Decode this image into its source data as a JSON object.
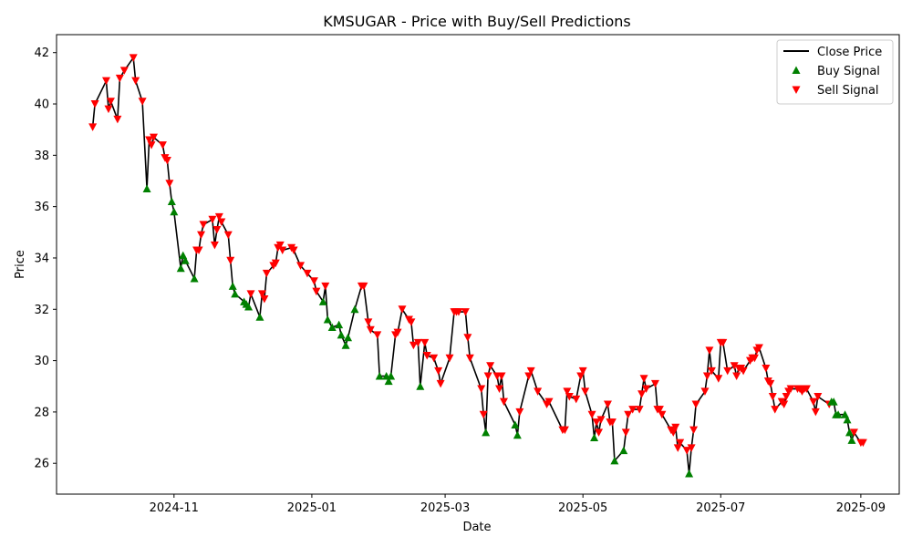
{
  "chart_data": {
    "type": "line",
    "title": "KMSUGAR - Price with Buy/Sell Predictions",
    "xlabel": "Date",
    "ylabel": "Price",
    "xlim": [
      "2024-09-10",
      "2025-09-18"
    ],
    "ylim": [
      24.8,
      42.7
    ],
    "x_ticks": [
      "2024-11",
      "2025-01",
      "2025-03",
      "2025-05",
      "2025-07",
      "2025-09"
    ],
    "y_ticks": [
      26,
      28,
      30,
      32,
      34,
      36,
      38,
      40,
      42
    ],
    "grid": false,
    "legend_position": "top-right",
    "legend": [
      "Close Price",
      "Buy Signal",
      "Sell Signal"
    ],
    "colors": {
      "line": "#000000",
      "buy": "#008000",
      "sell": "#ff0000"
    },
    "series": [
      {
        "name": "Close Price",
        "x": [
          "2024-09-26",
          "2024-09-27",
          "2024-10-02",
          "2024-10-03",
          "2024-10-04",
          "2024-10-07",
          "2024-10-08",
          "2024-10-10",
          "2024-10-14",
          "2024-10-15",
          "2024-10-18",
          "2024-10-20",
          "2024-10-21",
          "2024-10-22",
          "2024-10-23",
          "2024-10-27",
          "2024-10-28",
          "2024-10-29",
          "2024-10-30",
          "2024-10-31",
          "2024-11-01",
          "2024-11-04",
          "2024-11-05",
          "2024-11-06",
          "2024-11-10",
          "2024-11-11",
          "2024-11-12",
          "2024-11-13",
          "2024-11-14",
          "2024-11-18",
          "2024-11-19",
          "2024-11-20",
          "2024-11-21",
          "2024-11-22",
          "2024-11-25",
          "2024-11-26",
          "2024-11-27",
          "2024-11-28",
          "2024-12-02",
          "2024-12-03",
          "2024-12-04",
          "2024-12-05",
          "2024-12-09",
          "2024-12-10",
          "2024-12-11",
          "2024-12-12",
          "2024-12-15",
          "2024-12-16",
          "2024-12-17",
          "2024-12-18",
          "2024-12-19",
          "2024-12-23",
          "2024-12-24",
          "2024-12-27",
          "2024-12-30",
          "2025-01-02",
          "2025-01-03",
          "2025-01-06",
          "2025-01-07",
          "2025-01-08",
          "2025-01-10",
          "2025-01-13",
          "2025-01-14",
          "2025-01-16",
          "2025-01-17",
          "2025-01-20",
          "2025-01-23",
          "2025-01-24",
          "2025-01-26",
          "2025-01-27",
          "2025-01-30",
          "2025-01-31",
          "2025-02-03",
          "2025-02-04",
          "2025-02-05",
          "2025-02-07",
          "2025-02-08",
          "2025-02-10",
          "2025-02-13",
          "2025-02-14",
          "2025-02-15",
          "2025-02-17",
          "2025-02-18",
          "2025-02-20",
          "2025-02-21",
          "2025-02-24",
          "2025-02-26",
          "2025-02-27",
          "2025-03-03",
          "2025-03-05",
          "2025-03-06",
          "2025-03-07",
          "2025-03-10",
          "2025-03-11",
          "2025-03-12",
          "2025-03-17",
          "2025-03-18",
          "2025-03-19",
          "2025-03-20",
          "2025-03-21",
          "2025-03-24",
          "2025-03-25",
          "2025-03-26",
          "2025-03-27",
          "2025-04-01",
          "2025-04-02",
          "2025-04-03",
          "2025-04-07",
          "2025-04-08",
          "2025-04-11",
          "2025-04-15",
          "2025-04-16",
          "2025-04-22",
          "2025-04-23",
          "2025-04-24",
          "2025-04-25",
          "2025-04-28",
          "2025-04-30",
          "2025-05-01",
          "2025-05-02",
          "2025-05-05",
          "2025-05-06",
          "2025-05-07",
          "2025-05-08",
          "2025-05-09",
          "2025-05-12",
          "2025-05-13",
          "2025-05-14",
          "2025-05-15",
          "2025-05-19",
          "2025-05-20",
          "2025-05-21",
          "2025-05-23",
          "2025-05-26",
          "2025-05-27",
          "2025-05-28",
          "2025-05-29",
          "2025-06-02",
          "2025-06-03",
          "2025-06-04",
          "2025-06-05",
          "2025-06-09",
          "2025-06-10",
          "2025-06-11",
          "2025-06-12",
          "2025-06-13",
          "2025-06-16",
          "2025-06-17",
          "2025-06-18",
          "2025-06-19",
          "2025-06-20",
          "2025-06-24",
          "2025-06-25",
          "2025-06-26",
          "2025-06-27",
          "2025-06-30",
          "2025-07-01",
          "2025-07-02",
          "2025-07-04",
          "2025-07-07",
          "2025-07-08",
          "2025-07-09",
          "2025-07-10",
          "2025-07-11",
          "2025-07-14",
          "2025-07-15",
          "2025-07-16",
          "2025-07-17",
          "2025-07-18",
          "2025-07-21",
          "2025-07-22",
          "2025-07-23",
          "2025-07-24",
          "2025-07-25",
          "2025-07-28",
          "2025-07-29",
          "2025-07-30",
          "2025-07-31",
          "2025-08-01",
          "2025-08-04",
          "2025-08-05",
          "2025-08-06",
          "2025-08-07",
          "2025-08-08",
          "2025-08-11",
          "2025-08-12",
          "2025-08-13",
          "2025-08-18",
          "2025-08-19",
          "2025-08-20",
          "2025-08-21",
          "2025-08-22",
          "2025-08-25",
          "2025-08-26",
          "2025-08-27",
          "2025-08-28",
          "2025-08-29",
          "2025-09-01",
          "2025-09-02"
        ],
        "values": [
          39.1,
          40.0,
          40.9,
          39.8,
          40.1,
          39.4,
          41.0,
          41.3,
          41.8,
          40.9,
          40.1,
          36.7,
          38.6,
          38.4,
          38.7,
          38.4,
          37.9,
          37.8,
          36.9,
          36.2,
          35.8,
          33.6,
          34.1,
          33.9,
          33.2,
          34.3,
          34.3,
          34.9,
          35.3,
          35.5,
          34.5,
          35.1,
          35.6,
          35.4,
          34.9,
          33.9,
          32.9,
          32.6,
          32.3,
          32.2,
          32.1,
          32.6,
          31.7,
          32.6,
          32.4,
          33.4,
          33.7,
          33.8,
          34.4,
          34.5,
          34.3,
          34.4,
          34.3,
          33.7,
          33.4,
          33.1,
          32.7,
          32.3,
          32.9,
          31.6,
          31.3,
          31.4,
          31.0,
          30.6,
          30.9,
          32.0,
          32.9,
          32.9,
          31.5,
          31.2,
          31.0,
          29.4,
          29.4,
          29.2,
          29.4,
          31.0,
          31.1,
          32.0,
          31.6,
          31.5,
          30.6,
          30.7,
          29.0,
          30.7,
          30.2,
          30.1,
          29.6,
          29.1,
          30.1,
          31.9,
          31.9,
          31.9,
          31.9,
          30.9,
          30.1,
          28.9,
          27.9,
          27.2,
          29.4,
          29.8,
          29.4,
          28.9,
          29.4,
          28.4,
          27.5,
          27.1,
          28.0,
          29.4,
          29.6,
          28.8,
          28.3,
          28.4,
          27.3,
          27.3,
          28.8,
          28.6,
          28.5,
          29.4,
          29.6,
          28.8,
          27.9,
          27.0,
          27.6,
          27.2,
          27.7,
          28.3,
          27.6,
          27.6,
          26.1,
          26.5,
          27.2,
          27.9,
          28.1,
          28.1,
          28.7,
          29.3,
          28.9,
          29.1,
          28.1,
          28.1,
          27.9,
          27.3,
          27.2,
          27.4,
          26.6,
          26.8,
          26.5,
          25.6,
          26.6,
          27.3,
          28.3,
          28.8,
          29.4,
          30.4,
          29.6,
          29.3,
          30.7,
          30.7,
          29.6,
          29.8,
          29.4,
          29.7,
          29.7,
          29.6,
          30.0,
          30.1,
          30.1,
          30.4,
          30.5,
          29.7,
          29.2,
          29.1,
          28.6,
          28.1,
          28.4,
          28.3,
          28.6,
          28.8,
          28.9,
          28.9,
          28.9,
          28.8,
          28.9,
          28.9,
          28.4,
          28.0,
          28.6,
          28.3,
          28.4,
          28.4,
          27.9,
          27.9,
          27.9,
          27.7,
          27.2,
          26.9,
          27.2,
          26.8,
          26.8
        ],
        "signals": [
          "sell",
          "sell",
          "sell",
          "sell",
          "sell",
          "sell",
          "sell",
          "sell",
          "sell",
          "sell",
          "sell",
          "buy",
          "sell",
          "sell",
          "sell",
          "sell",
          "sell",
          "sell",
          "sell",
          "buy",
          "buy",
          "buy",
          "buy",
          "buy",
          "buy",
          "sell",
          "sell",
          "sell",
          "sell",
          "sell",
          "sell",
          "sell",
          "sell",
          "sell",
          "sell",
          "sell",
          "buy",
          "buy",
          "buy",
          "buy",
          "buy",
          "sell",
          "buy",
          "sell",
          "sell",
          "sell",
          "sell",
          "sell",
          "sell",
          "sell",
          "sell",
          "sell",
          "sell",
          "sell",
          "sell",
          "sell",
          "sell",
          "buy",
          "sell",
          "buy",
          "buy",
          "buy",
          "buy",
          "buy",
          "buy",
          "buy",
          "sell",
          "sell",
          "sell",
          "sell",
          "sell",
          "buy",
          "buy",
          "buy",
          "buy",
          "sell",
          "sell",
          "sell",
          "sell",
          "sell",
          "sell",
          "sell",
          "buy",
          "sell",
          "sell",
          "sell",
          "sell",
          "sell",
          "sell",
          "sell",
          "sell",
          "sell",
          "sell",
          "sell",
          "sell",
          "sell",
          "sell",
          "buy",
          "sell",
          "sell",
          "sell",
          "sell",
          "sell",
          "sell",
          "buy",
          "buy",
          "sell",
          "sell",
          "sell",
          "sell",
          "sell",
          "sell",
          "sell",
          "sell",
          "sell",
          "sell",
          "sell",
          "sell",
          "sell",
          "sell",
          "sell",
          "buy",
          "sell",
          "sell",
          "sell",
          "sell",
          "sell",
          "sell",
          "buy",
          "buy",
          "sell",
          "sell",
          "sell",
          "sell",
          "sell",
          "sell",
          "sell",
          "sell",
          "sell",
          "sell",
          "sell",
          "sell",
          "sell",
          "sell",
          "sell",
          "sell",
          "sell",
          "buy",
          "sell",
          "sell",
          "sell",
          "sell",
          "sell",
          "sell",
          "sell",
          "sell",
          "sell",
          "sell",
          "sell",
          "sell",
          "sell",
          "sell",
          "sell",
          "sell",
          "sell",
          "sell",
          "sell",
          "sell",
          "sell",
          "sell",
          "sell",
          "sell",
          "sell",
          "sell",
          "sell",
          "sell",
          "sell",
          "sell",
          "sell",
          "sell",
          "sell",
          "sell",
          "sell",
          "sell",
          "sell",
          "sell",
          "sell",
          "sell",
          "buy",
          "buy",
          "buy",
          "buy",
          "buy",
          "buy",
          "buy",
          "buy"
        ]
      }
    ]
  }
}
